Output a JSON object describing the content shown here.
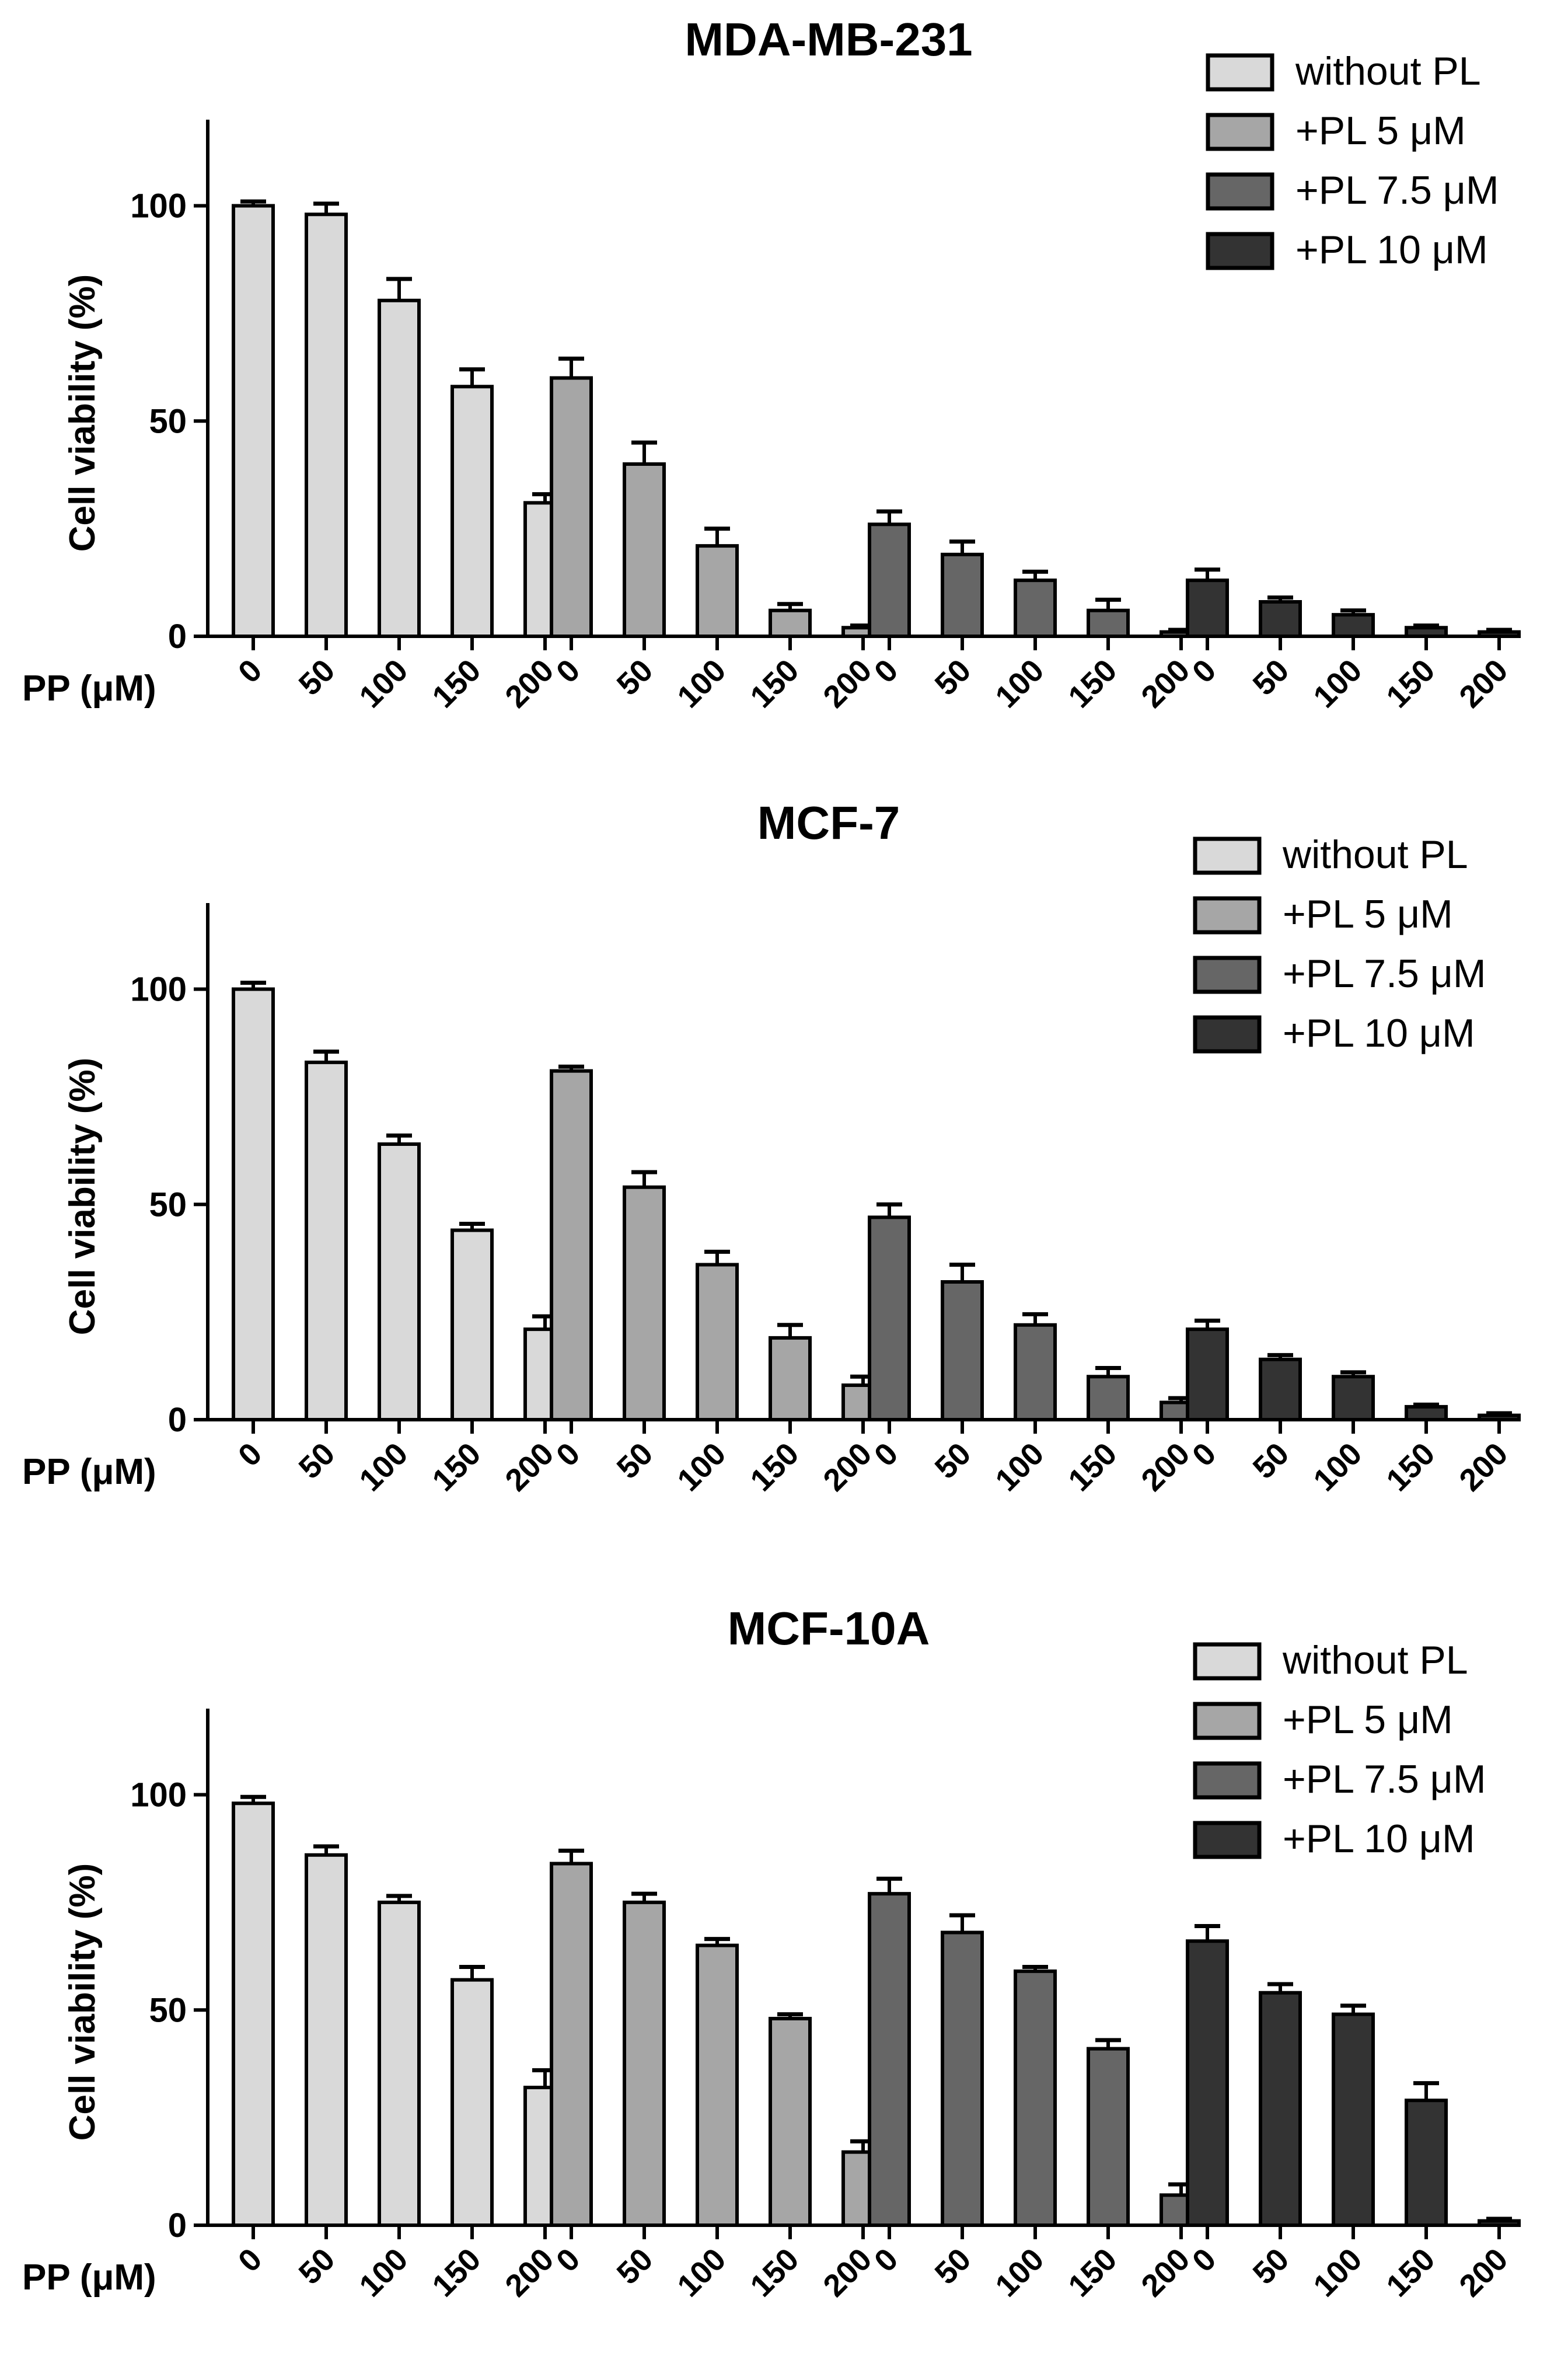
{
  "chart_data": [
    {
      "type": "bar",
      "title": "MDA-MB-231",
      "xlabel": "PP (μM)",
      "ylabel": "Cell viability (%)",
      "ylim": [
        0,
        120
      ],
      "yticks": [
        0,
        50,
        100
      ],
      "categories": [
        "0",
        "50",
        "100",
        "150",
        "200"
      ],
      "legend_position": "top-right",
      "series": [
        {
          "name": "without PL",
          "color": "#d9d9d9",
          "values": [
            100,
            98,
            78,
            58,
            31
          ],
          "errors": [
            1,
            2.5,
            5,
            4,
            2
          ]
        },
        {
          "name": "+PL 5 μM",
          "color": "#a6a6a6",
          "values": [
            60,
            40,
            21,
            6,
            2
          ],
          "errors": [
            4.5,
            5,
            4,
            1.5,
            0.5
          ]
        },
        {
          "name": "+PL 7.5 μM",
          "color": "#666666",
          "values": [
            26,
            19,
            13,
            6,
            1
          ],
          "errors": [
            3,
            3,
            2,
            2.5,
            0.5
          ]
        },
        {
          "name": "+PL 10 μM",
          "color": "#333333",
          "values": [
            13,
            8,
            5,
            2,
            1
          ],
          "errors": [
            2.5,
            1,
            1,
            0.5,
            0.5
          ]
        }
      ]
    },
    {
      "type": "bar",
      "title": "MCF-7",
      "xlabel": "PP (μM)",
      "ylabel": "Cell viability (%)",
      "ylim": [
        0,
        120
      ],
      "yticks": [
        0,
        50,
        100
      ],
      "categories": [
        "0",
        "50",
        "100",
        "150",
        "200"
      ],
      "legend_position": "top-right",
      "series": [
        {
          "name": "without PL",
          "color": "#d9d9d9",
          "values": [
            100,
            83,
            64,
            44,
            21
          ],
          "errors": [
            1.5,
            2.5,
            2,
            1.5,
            3
          ]
        },
        {
          "name": "+PL 5 μM",
          "color": "#a6a6a6",
          "values": [
            81,
            54,
            36,
            19,
            8
          ],
          "errors": [
            1,
            3.5,
            3,
            3,
            2
          ]
        },
        {
          "name": "+PL 7.5 μM",
          "color": "#666666",
          "values": [
            47,
            32,
            22,
            10,
            4
          ],
          "errors": [
            3,
            4,
            2.5,
            2,
            1
          ]
        },
        {
          "name": "+PL 10 μM",
          "color": "#333333",
          "values": [
            21,
            14,
            10,
            3,
            1
          ],
          "errors": [
            2,
            1,
            1,
            0.5,
            0.5
          ]
        }
      ]
    },
    {
      "type": "bar",
      "title": "MCF-10A",
      "xlabel": "PP (μM)",
      "ylabel": "Cell viability (%)",
      "ylim": [
        0,
        120
      ],
      "yticks": [
        0,
        50,
        100
      ],
      "categories": [
        "0",
        "50",
        "100",
        "150",
        "200"
      ],
      "legend_position": "top-right",
      "series": [
        {
          "name": "without PL",
          "color": "#d9d9d9",
          "values": [
            98,
            86,
            75,
            57,
            32
          ],
          "errors": [
            1.5,
            2,
            1.5,
            3,
            4
          ]
        },
        {
          "name": "+PL 5 μM",
          "color": "#a6a6a6",
          "values": [
            84,
            75,
            65,
            48,
            17
          ],
          "errors": [
            3,
            2,
            1.5,
            1,
            2.5
          ]
        },
        {
          "name": "+PL 7.5 μM",
          "color": "#666666",
          "values": [
            77,
            68,
            59,
            41,
            7
          ],
          "errors": [
            3.5,
            4,
            1,
            2,
            2.5
          ]
        },
        {
          "name": "+PL 10 μM",
          "color": "#333333",
          "values": [
            66,
            54,
            49,
            29,
            1
          ],
          "errors": [
            3.5,
            2,
            2,
            4,
            0.5
          ]
        }
      ]
    }
  ]
}
